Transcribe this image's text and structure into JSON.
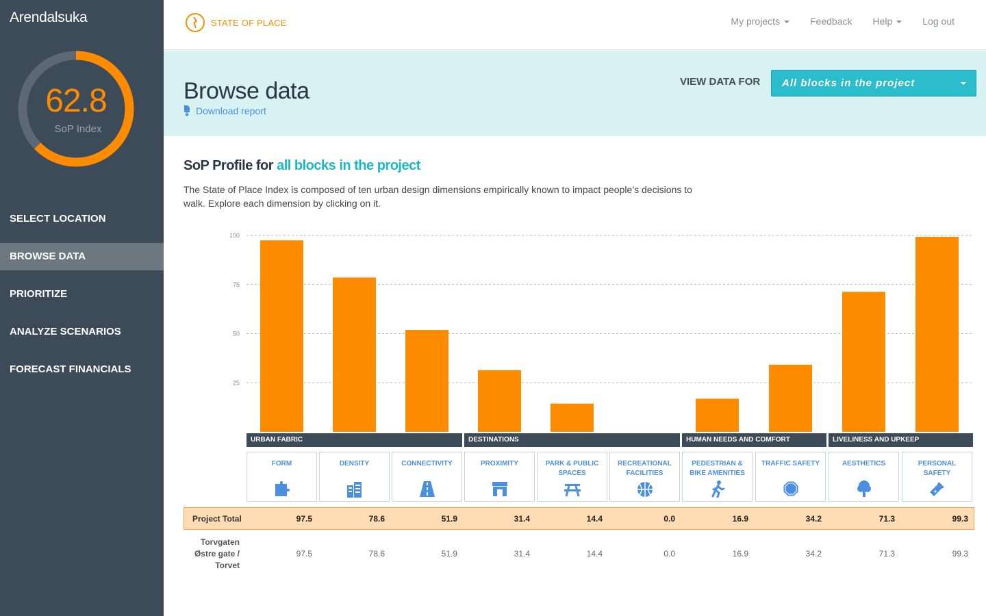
{
  "sidebar": {
    "project_name": "Arendalsuka",
    "sop_index": {
      "value": "62.8",
      "label": "SoP Index",
      "fraction": 0.628
    },
    "nav": [
      {
        "label": "SELECT LOCATION",
        "active": false
      },
      {
        "label": "BROWSE DATA",
        "active": true
      },
      {
        "label": "PRIORITIZE",
        "active": false
      },
      {
        "label": "ANALYZE SCENARIOS",
        "active": false
      },
      {
        "label": "FORECAST FINANCIALS",
        "active": false
      }
    ]
  },
  "topbar": {
    "brand": "STATE OF PLACE",
    "links": {
      "my_projects": "My projects",
      "feedback": "Feedback",
      "help": "Help",
      "logout": "Log out"
    }
  },
  "header": {
    "title": "Browse data",
    "download": "Download report",
    "view_label": "VIEW DATA FOR",
    "view_value": "All blocks in the project"
  },
  "profile": {
    "title_prefix": "SoP Profile for",
    "title_accent": "all blocks in the project",
    "description": "The State of Place Index is composed of ten urban design dimensions empirically known to impact people’s decisions to walk. Explore each dimension by clicking on it."
  },
  "groups": [
    "URBAN FABRIC",
    "DESTINATIONS",
    "HUMAN NEEDS AND COMFORT",
    "LIVELINESS AND UPKEEP"
  ],
  "dimensions": [
    {
      "label": "FORM",
      "icon": "puzzle-icon"
    },
    {
      "label": "DENSITY",
      "icon": "buildings-icon"
    },
    {
      "label": "CONNECTIVITY",
      "icon": "road-icon"
    },
    {
      "label": "PROXIMITY",
      "icon": "storefront-icon"
    },
    {
      "label": "PARK & PUBLIC SPACES",
      "icon": "picnic-table-icon"
    },
    {
      "label": "RECREATIONAL FACILITIES",
      "icon": "basketball-icon"
    },
    {
      "label": "PEDESTRIAN & BIKE AMENITIES",
      "icon": "pedestrian-icon"
    },
    {
      "label": "TRAFFIC SAFETY",
      "icon": "octagon-icon"
    },
    {
      "label": "AESTHETICS",
      "icon": "tree-icon"
    },
    {
      "label": "PERSONAL SAFETY",
      "icon": "flashlight-icon"
    }
  ],
  "table": {
    "total_label": "Project Total",
    "total_values": [
      "97.5",
      "78.6",
      "51.9",
      "31.4",
      "14.4",
      "0.0",
      "16.9",
      "34.2",
      "71.3",
      "99.3"
    ],
    "location_label": "Torvgaten Østre gate / Torvet",
    "location_values": [
      "97.5",
      "78.6",
      "51.9",
      "31.4",
      "14.4",
      "0.0",
      "16.9",
      "34.2",
      "71.3",
      "99.3"
    ]
  },
  "chart_data": {
    "type": "bar",
    "categories": [
      "FORM",
      "DENSITY",
      "CONNECTIVITY",
      "PROXIMITY",
      "PARK & PUBLIC SPACES",
      "RECREATIONAL FACILITIES",
      "PEDESTRIAN & BIKE AMENITIES",
      "TRAFFIC SAFETY",
      "AESTHETICS",
      "PERSONAL SAFETY"
    ],
    "values": [
      97.5,
      78.6,
      51.9,
      31.4,
      14.4,
      0.0,
      16.9,
      34.2,
      71.3,
      99.3
    ],
    "ylim": [
      0,
      100
    ],
    "yticks": [
      "100",
      "75",
      "50",
      "25"
    ],
    "grid": true,
    "bar_color": "#ff8c00"
  },
  "colors": {
    "accent": "#ff8c00",
    "teal": "#2bbdcc",
    "sidebar": "#3d4a57"
  }
}
